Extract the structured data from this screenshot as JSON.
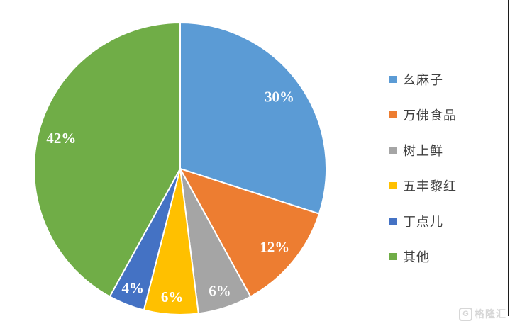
{
  "chart_data": {
    "type": "pie",
    "title": "",
    "series": [
      {
        "label": "幺麻子",
        "value": 30,
        "color": "#5B9BD5"
      },
      {
        "label": "万佛食品",
        "value": 12,
        "color": "#ED7D31"
      },
      {
        "label": "树上鲜",
        "value": 6,
        "color": "#A5A5A5"
      },
      {
        "label": "五丰黎红",
        "value": 6,
        "color": "#FFC000"
      },
      {
        "label": "丁点儿",
        "value": 4,
        "color": "#4472C4"
      },
      {
        "label": "其他",
        "value": 42,
        "color": "#70AD47"
      }
    ],
    "data_labels": [
      "30%",
      "12%",
      "6%",
      "6%",
      "4%",
      "42%"
    ],
    "start_angle_deg": 0,
    "direction": "clockwise",
    "legend_position": "right",
    "slice_label_color": "#ffffff",
    "slice_separator_color": "#ffffff"
  },
  "watermark": {
    "logo_letter": "G",
    "text": "格隆汇"
  }
}
